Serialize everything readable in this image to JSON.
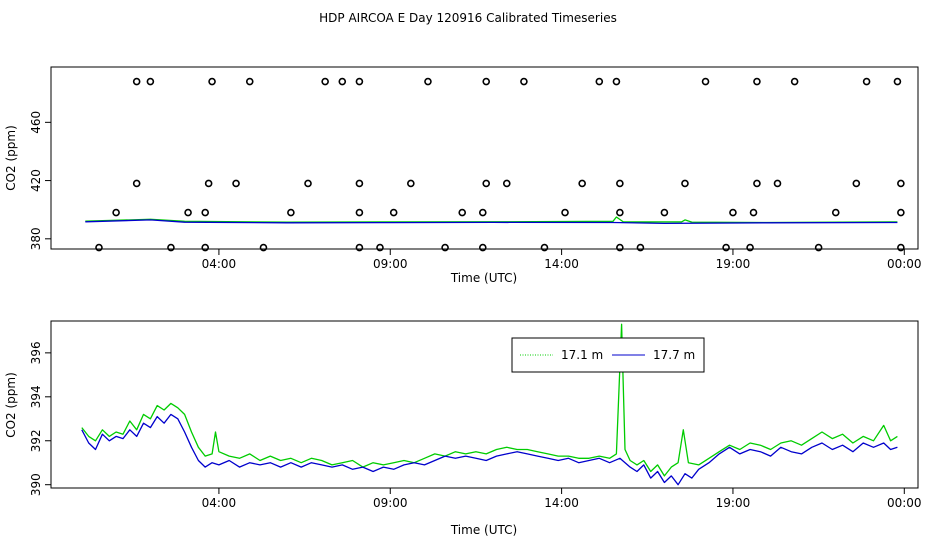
{
  "title": "HDP AIRCOA E  Day 120916  Calibrated Timeseries",
  "chart_data": [
    {
      "type": "line",
      "xlabel": "Time (UTC)",
      "ylabel": "CO2 (ppm)",
      "x_ticks": [
        {
          "hour": 4,
          "label": "04:00"
        },
        {
          "hour": 9,
          "label": "09:00"
        },
        {
          "hour": 14,
          "label": "14:00"
        },
        {
          "hour": 19,
          "label": "19:00"
        },
        {
          "hour": 24,
          "label": "00:00"
        }
      ],
      "xlim": [
        -0.9,
        24.4
      ],
      "y_ticks": [
        380,
        420,
        460
      ],
      "ylim": [
        373,
        498
      ],
      "series": [
        {
          "color": "#00cc00",
          "values": [
            [
              0.1,
              392.1
            ],
            [
              2,
              393.4
            ],
            [
              3,
              392.0
            ],
            [
              6,
              391.5
            ],
            [
              9,
              391.6
            ],
            [
              12,
              391.7
            ],
            [
              15.5,
              392.0
            ],
            [
              15.6,
              395.0
            ],
            [
              15.8,
              391.6
            ],
            [
              17.5,
              391.6
            ],
            [
              17.6,
              393.0
            ],
            [
              17.8,
              391.5
            ],
            [
              20,
              391.2
            ],
            [
              23.8,
              391.6
            ]
          ]
        },
        {
          "color": "#0000cc",
          "values": [
            [
              0.1,
              391.7
            ],
            [
              2,
              393.0
            ],
            [
              3,
              391.4
            ],
            [
              6,
              391.0
            ],
            [
              9,
              391.1
            ],
            [
              12,
              391.3
            ],
            [
              15.5,
              391.2
            ],
            [
              17,
              390.6
            ],
            [
              20,
              391.0
            ],
            [
              23.8,
              391.2
            ]
          ]
        }
      ],
      "scatter": {
        "marker": "open-circle",
        "points": [
          [
            0.5,
            374
          ],
          [
            1.6,
            488
          ],
          [
            2.6,
            374
          ],
          [
            3.6,
            374
          ],
          [
            5.3,
            374
          ],
          [
            7.6,
            488
          ],
          [
            8.1,
            374
          ],
          [
            8.7,
            374
          ],
          [
            10.6,
            374
          ],
          [
            11.7,
            374
          ],
          [
            13.5,
            374
          ],
          [
            15.7,
            374
          ],
          [
            16.3,
            374
          ],
          [
            18.8,
            374
          ],
          [
            19.5,
            374
          ],
          [
            21.5,
            374
          ],
          [
            23.9,
            374
          ],
          [
            1.0,
            398
          ],
          [
            3.1,
            398
          ],
          [
            3.6,
            398
          ],
          [
            6.1,
            398
          ],
          [
            8.1,
            398
          ],
          [
            9.1,
            398
          ],
          [
            11.1,
            398
          ],
          [
            11.7,
            398
          ],
          [
            14.1,
            398
          ],
          [
            15.7,
            398
          ],
          [
            17.0,
            398
          ],
          [
            19.0,
            398
          ],
          [
            19.6,
            398
          ],
          [
            22.0,
            398
          ],
          [
            23.9,
            398
          ],
          [
            1.6,
            418
          ],
          [
            3.7,
            418
          ],
          [
            4.5,
            418
          ],
          [
            6.6,
            418
          ],
          [
            8.1,
            418
          ],
          [
            9.6,
            418
          ],
          [
            11.8,
            418
          ],
          [
            12.4,
            418
          ],
          [
            14.6,
            418
          ],
          [
            15.7,
            418
          ],
          [
            17.6,
            418
          ],
          [
            19.7,
            418
          ],
          [
            20.3,
            418
          ],
          [
            22.6,
            418
          ],
          [
            23.9,
            418
          ],
          [
            2.0,
            488
          ],
          [
            3.8,
            488
          ],
          [
            4.9,
            488
          ],
          [
            7.1,
            488
          ],
          [
            8.1,
            488
          ],
          [
            10.1,
            488
          ],
          [
            11.8,
            488
          ],
          [
            12.9,
            488
          ],
          [
            15.1,
            488
          ],
          [
            15.6,
            488
          ],
          [
            18.2,
            488
          ],
          [
            19.7,
            488
          ],
          [
            20.8,
            488
          ],
          [
            22.9,
            488
          ],
          [
            23.8,
            488
          ]
        ]
      }
    },
    {
      "type": "line",
      "xlabel": "Time (UTC)",
      "ylabel": "CO2 (ppm)",
      "x_ticks": [
        {
          "hour": 4,
          "label": "04:00"
        },
        {
          "hour": 9,
          "label": "09:00"
        },
        {
          "hour": 14,
          "label": "14:00"
        },
        {
          "hour": 19,
          "label": "19:00"
        },
        {
          "hour": 24,
          "label": "00:00"
        }
      ],
      "xlim": [
        -0.9,
        24.4
      ],
      "y_ticks": [
        390,
        392,
        394,
        396
      ],
      "ylim": [
        389.85,
        397.45
      ],
      "legend": {
        "position": "top-center"
      },
      "series": [
        {
          "name": "17.1 m",
          "color": "#00cc00",
          "values": [
            [
              0.0,
              392.6
            ],
            [
              0.2,
              392.2
            ],
            [
              0.4,
              392.0
            ],
            [
              0.6,
              392.5
            ],
            [
              0.8,
              392.2
            ],
            [
              1.0,
              392.4
            ],
            [
              1.2,
              392.3
            ],
            [
              1.4,
              392.9
            ],
            [
              1.6,
              392.5
            ],
            [
              1.8,
              393.2
            ],
            [
              2.0,
              393.0
            ],
            [
              2.2,
              393.6
            ],
            [
              2.4,
              393.4
            ],
            [
              2.6,
              393.7
            ],
            [
              2.8,
              393.5
            ],
            [
              3.0,
              393.2
            ],
            [
              3.2,
              392.4
            ],
            [
              3.4,
              391.7
            ],
            [
              3.6,
              391.3
            ],
            [
              3.8,
              391.4
            ],
            [
              3.9,
              392.4
            ],
            [
              4.0,
              391.5
            ],
            [
              4.3,
              391.3
            ],
            [
              4.6,
              391.2
            ],
            [
              4.9,
              391.4
            ],
            [
              5.2,
              391.1
            ],
            [
              5.5,
              391.3
            ],
            [
              5.8,
              391.1
            ],
            [
              6.1,
              391.2
            ],
            [
              6.4,
              391.0
            ],
            [
              6.7,
              391.2
            ],
            [
              7.0,
              391.1
            ],
            [
              7.3,
              390.9
            ],
            [
              7.6,
              391.0
            ],
            [
              7.9,
              391.1
            ],
            [
              8.2,
              390.8
            ],
            [
              8.5,
              391.0
            ],
            [
              8.8,
              390.9
            ],
            [
              9.1,
              391.0
            ],
            [
              9.4,
              391.1
            ],
            [
              9.7,
              391.0
            ],
            [
              10.0,
              391.2
            ],
            [
              10.3,
              391.4
            ],
            [
              10.6,
              391.3
            ],
            [
              10.9,
              391.5
            ],
            [
              11.2,
              391.4
            ],
            [
              11.5,
              391.5
            ],
            [
              11.8,
              391.4
            ],
            [
              12.1,
              391.6
            ],
            [
              12.4,
              391.7
            ],
            [
              12.7,
              391.6
            ],
            [
              13.0,
              391.6
            ],
            [
              13.3,
              391.5
            ],
            [
              13.6,
              391.4
            ],
            [
              13.9,
              391.3
            ],
            [
              14.2,
              391.3
            ],
            [
              14.5,
              391.2
            ],
            [
              14.8,
              391.2
            ],
            [
              15.1,
              391.3
            ],
            [
              15.4,
              391.2
            ],
            [
              15.6,
              391.4
            ],
            [
              15.75,
              397.3
            ],
            [
              15.85,
              391.6
            ],
            [
              16.0,
              391.1
            ],
            [
              16.2,
              390.9
            ],
            [
              16.4,
              391.1
            ],
            [
              16.6,
              390.6
            ],
            [
              16.8,
              390.9
            ],
            [
              17.0,
              390.4
            ],
            [
              17.2,
              390.8
            ],
            [
              17.4,
              391.0
            ],
            [
              17.55,
              392.5
            ],
            [
              17.7,
              391.0
            ],
            [
              18.0,
              390.9
            ],
            [
              18.3,
              391.2
            ],
            [
              18.6,
              391.5
            ],
            [
              18.9,
              391.8
            ],
            [
              19.2,
              391.6
            ],
            [
              19.5,
              391.9
            ],
            [
              19.8,
              391.8
            ],
            [
              20.1,
              391.6
            ],
            [
              20.4,
              391.9
            ],
            [
              20.7,
              392.0
            ],
            [
              21.0,
              391.8
            ],
            [
              21.3,
              392.1
            ],
            [
              21.6,
              392.4
            ],
            [
              21.9,
              392.1
            ],
            [
              22.2,
              392.3
            ],
            [
              22.5,
              391.9
            ],
            [
              22.8,
              392.2
            ],
            [
              23.1,
              392.0
            ],
            [
              23.4,
              392.7
            ],
            [
              23.6,
              392.0
            ],
            [
              23.8,
              392.2
            ]
          ]
        },
        {
          "name": "17.7 m",
          "color": "#0000cc",
          "values": [
            [
              0.0,
              392.5
            ],
            [
              0.2,
              391.9
            ],
            [
              0.4,
              391.6
            ],
            [
              0.6,
              392.3
            ],
            [
              0.8,
              392.0
            ],
            [
              1.0,
              392.2
            ],
            [
              1.2,
              392.1
            ],
            [
              1.4,
              392.5
            ],
            [
              1.6,
              392.2
            ],
            [
              1.8,
              392.8
            ],
            [
              2.0,
              392.6
            ],
            [
              2.2,
              393.1
            ],
            [
              2.4,
              392.8
            ],
            [
              2.6,
              393.2
            ],
            [
              2.8,
              393.0
            ],
            [
              3.0,
              392.4
            ],
            [
              3.2,
              391.7
            ],
            [
              3.4,
              391.1
            ],
            [
              3.6,
              390.8
            ],
            [
              3.8,
              391.0
            ],
            [
              4.0,
              390.9
            ],
            [
              4.3,
              391.1
            ],
            [
              4.6,
              390.8
            ],
            [
              4.9,
              391.0
            ],
            [
              5.2,
              390.9
            ],
            [
              5.5,
              391.0
            ],
            [
              5.8,
              390.8
            ],
            [
              6.1,
              391.0
            ],
            [
              6.4,
              390.8
            ],
            [
              6.7,
              391.0
            ],
            [
              7.0,
              390.9
            ],
            [
              7.3,
              390.8
            ],
            [
              7.6,
              390.9
            ],
            [
              7.9,
              390.7
            ],
            [
              8.2,
              390.8
            ],
            [
              8.5,
              390.6
            ],
            [
              8.8,
              390.8
            ],
            [
              9.1,
              390.7
            ],
            [
              9.4,
              390.9
            ],
            [
              9.7,
              391.0
            ],
            [
              10.0,
              390.9
            ],
            [
              10.3,
              391.1
            ],
            [
              10.6,
              391.3
            ],
            [
              10.9,
              391.2
            ],
            [
              11.2,
              391.3
            ],
            [
              11.5,
              391.2
            ],
            [
              11.8,
              391.1
            ],
            [
              12.1,
              391.3
            ],
            [
              12.4,
              391.4
            ],
            [
              12.7,
              391.5
            ],
            [
              13.0,
              391.4
            ],
            [
              13.3,
              391.3
            ],
            [
              13.6,
              391.2
            ],
            [
              13.9,
              391.1
            ],
            [
              14.2,
              391.2
            ],
            [
              14.5,
              391.0
            ],
            [
              14.8,
              391.1
            ],
            [
              15.1,
              391.2
            ],
            [
              15.4,
              391.0
            ],
            [
              15.7,
              391.2
            ],
            [
              16.0,
              390.8
            ],
            [
              16.2,
              390.6
            ],
            [
              16.4,
              390.9
            ],
            [
              16.6,
              390.3
            ],
            [
              16.8,
              390.6
            ],
            [
              17.0,
              390.1
            ],
            [
              17.2,
              390.4
            ],
            [
              17.4,
              390.0
            ],
            [
              17.6,
              390.5
            ],
            [
              17.8,
              390.3
            ],
            [
              18.0,
              390.7
            ],
            [
              18.3,
              391.0
            ],
            [
              18.6,
              391.4
            ],
            [
              18.9,
              391.7
            ],
            [
              19.2,
              391.4
            ],
            [
              19.5,
              391.6
            ],
            [
              19.8,
              391.5
            ],
            [
              20.1,
              391.3
            ],
            [
              20.4,
              391.7
            ],
            [
              20.7,
              391.5
            ],
            [
              21.0,
              391.4
            ],
            [
              21.3,
              391.7
            ],
            [
              21.6,
              391.9
            ],
            [
              21.9,
              391.6
            ],
            [
              22.2,
              391.8
            ],
            [
              22.5,
              391.5
            ],
            [
              22.8,
              391.9
            ],
            [
              23.1,
              391.7
            ],
            [
              23.4,
              391.9
            ],
            [
              23.6,
              391.6
            ],
            [
              23.8,
              391.7
            ]
          ]
        }
      ]
    }
  ]
}
